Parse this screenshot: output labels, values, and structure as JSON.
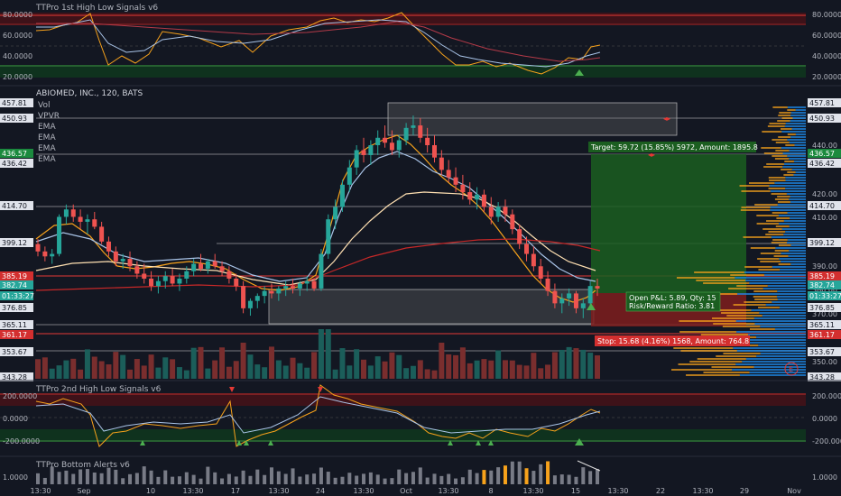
{
  "colors": {
    "bg": "#131722",
    "grid": "#1f2430",
    "text": "#b2b5be",
    "up": "#26a69a",
    "down": "#ef5350",
    "orange": "#f7a21b",
    "lightblue": "#a9c4e8",
    "darkred": "#b71c1c",
    "target": "#1b5e20",
    "stop": "#7f1d1d",
    "accent_green": "#4caf50",
    "accent_red": "#e53935",
    "price_tag": "#1e222d"
  },
  "top_panel": {
    "title": "TTPro 1st High Low Signals v6",
    "axis_labels": [
      "80.0000",
      "60.0000",
      "40.0000",
      "20.0000"
    ]
  },
  "main_panel": {
    "title": "ABIOMED, INC., 120, BATS",
    "indicators": [
      "Vol",
      "VPVR",
      "EMA",
      "EMA",
      "EMA",
      "EMA"
    ],
    "axis_labels": [
      "440.00",
      "420.00",
      "410.00",
      "390.00",
      "380.00",
      "370.00",
      "350.00"
    ],
    "price_tags": [
      {
        "text": "457.81",
        "style": "neutral"
      },
      {
        "text": "450.93",
        "style": "neutral"
      },
      {
        "text": "436.57",
        "style": "green"
      },
      {
        "text": "436.42",
        "style": "neutral"
      },
      {
        "text": "414.70",
        "style": "neutral"
      },
      {
        "text": "399.12",
        "style": "neutral"
      },
      {
        "text": "385.19",
        "style": "red"
      },
      {
        "text": "382.74",
        "style": "teal"
      },
      {
        "text": "01:33:27",
        "style": "teal"
      },
      {
        "text": "376.85",
        "style": "neutral"
      },
      {
        "text": "365.11",
        "style": "neutral"
      },
      {
        "text": "361.17",
        "style": "red"
      },
      {
        "text": "353.67",
        "style": "neutral"
      },
      {
        "text": "343.28",
        "style": "neutral"
      }
    ],
    "left_tags": [
      {
        "text": "457.81"
      },
      {
        "text": "450.93"
      },
      {
        "text": "436.57"
      },
      {
        "text": "436.42"
      },
      {
        "text": "414.70"
      },
      {
        "text": "399.12"
      },
      {
        "text": "385.19"
      },
      {
        "text": "382.74"
      },
      {
        "text": "01:33:27"
      },
      {
        "text": "376.85"
      },
      {
        "text": "365.11"
      },
      {
        "text": "361.17"
      },
      {
        "text": "353.67"
      },
      {
        "text": "343.28"
      }
    ],
    "target_label": "Target: 59.72 (15.85%) 5972, Amount: 1895.8",
    "open_pnl_label": "Open P&L: 5.89, Qty: 15",
    "rr_label": "Risk/Reward Ratio: 3.81",
    "stop_label": "Stop: 15.68 (4.16%) 1568, Amount: 764.8",
    "earnings_marker": "E"
  },
  "panel_2nd": {
    "title": "TTPro 2nd High Low Signals v6",
    "axis_labels": [
      "200.0000",
      "0.0000",
      "-200.0000"
    ]
  },
  "panel_bottom": {
    "title": "TTPro Bottom Alerts v6",
    "axis_labels": [
      "1.0000"
    ]
  },
  "x_axis": {
    "labels": [
      "13:30",
      "Sep",
      "10",
      "13:30",
      "17",
      "13:30",
      "24",
      "13:30",
      "Oct",
      "13:30",
      "8",
      "13:30",
      "15",
      "13:30",
      "22",
      "13:30",
      "29",
      "Nov"
    ]
  },
  "chart_data": {
    "type": "candlestick",
    "title": "ABIOMED, INC., 120, BATS",
    "ylim": [
      340,
      460
    ],
    "candles": [
      [
        400,
        402,
        395,
        397
      ],
      [
        397,
        399,
        393,
        395
      ],
      [
        395,
        398,
        392,
        396
      ],
      [
        396,
        412,
        395,
        411
      ],
      [
        411,
        416,
        408,
        414
      ],
      [
        414,
        416,
        409,
        411
      ],
      [
        411,
        414,
        406,
        409
      ],
      [
        409,
        412,
        404,
        410
      ],
      [
        410,
        413,
        406,
        407
      ],
      [
        407,
        409,
        400,
        401
      ],
      [
        401,
        403,
        395,
        397
      ],
      [
        397,
        399,
        391,
        393
      ],
      [
        393,
        396,
        390,
        394
      ],
      [
        394,
        397,
        389,
        391
      ],
      [
        391,
        393,
        386,
        388
      ],
      [
        388,
        392,
        384,
        386
      ],
      [
        386,
        389,
        381,
        383
      ],
      [
        383,
        387,
        380,
        385
      ],
      [
        385,
        389,
        382,
        387
      ],
      [
        387,
        390,
        383,
        384
      ],
      [
        384,
        388,
        381,
        386
      ],
      [
        386,
        391,
        384,
        389
      ],
      [
        389,
        394,
        387,
        392
      ],
      [
        392,
        396,
        389,
        390
      ],
      [
        390,
        394,
        388,
        393
      ],
      [
        393,
        396,
        390,
        391
      ],
      [
        391,
        393,
        387,
        389
      ],
      [
        389,
        391,
        384,
        386
      ],
      [
        386,
        388,
        381,
        383
      ],
      [
        383,
        385,
        372,
        374
      ],
      [
        374,
        378,
        371,
        377
      ],
      [
        377,
        380,
        374,
        379
      ],
      [
        379,
        383,
        376,
        381
      ],
      [
        381,
        384,
        378,
        380
      ],
      [
        380,
        383,
        377,
        382
      ],
      [
        382,
        385,
        379,
        383
      ],
      [
        383,
        386,
        380,
        382
      ],
      [
        382,
        385,
        379,
        384
      ],
      [
        384,
        387,
        381,
        385
      ],
      [
        385,
        386,
        381,
        382
      ],
      [
        382,
        398,
        381,
        396
      ],
      [
        396,
        412,
        394,
        410
      ],
      [
        410,
        418,
        406,
        415
      ],
      [
        415,
        426,
        413,
        424
      ],
      [
        424,
        434,
        421,
        431
      ],
      [
        431,
        440,
        428,
        438
      ],
      [
        438,
        443,
        433,
        436
      ],
      [
        436,
        442,
        432,
        440
      ],
      [
        440,
        446,
        436,
        443
      ],
      [
        443,
        448,
        439,
        441
      ],
      [
        441,
        446,
        436,
        438
      ],
      [
        438,
        444,
        435,
        442
      ],
      [
        442,
        449,
        440,
        447
      ],
      [
        447,
        452,
        444,
        448
      ],
      [
        448,
        451,
        441,
        443
      ],
      [
        443,
        447,
        437,
        440
      ],
      [
        440,
        444,
        433,
        435
      ],
      [
        435,
        438,
        428,
        430
      ],
      [
        430,
        434,
        425,
        427
      ],
      [
        427,
        431,
        421,
        424
      ],
      [
        424,
        428,
        418,
        421
      ],
      [
        421,
        425,
        416,
        418
      ],
      [
        418,
        423,
        414,
        420
      ],
      [
        420,
        422,
        413,
        415
      ],
      [
        415,
        419,
        408,
        411
      ],
      [
        411,
        417,
        409,
        415
      ],
      [
        415,
        418,
        409,
        412
      ],
      [
        412,
        414,
        404,
        406
      ],
      [
        406,
        408,
        398,
        400
      ],
      [
        400,
        403,
        393,
        396
      ],
      [
        396,
        399,
        389,
        391
      ],
      [
        391,
        394,
        384,
        386
      ],
      [
        386,
        389,
        379,
        381
      ],
      [
        381,
        384,
        374,
        376
      ],
      [
        376,
        380,
        372,
        378
      ],
      [
        378,
        382,
        375,
        380
      ],
      [
        380,
        381,
        372,
        374
      ],
      [
        374,
        378,
        370,
        376
      ],
      [
        376,
        385,
        375,
        383
      ],
      [
        383,
        386,
        379,
        382
      ]
    ],
    "target_price": 436.57,
    "stop_price": 361.17,
    "entry_price": 376.85
  }
}
